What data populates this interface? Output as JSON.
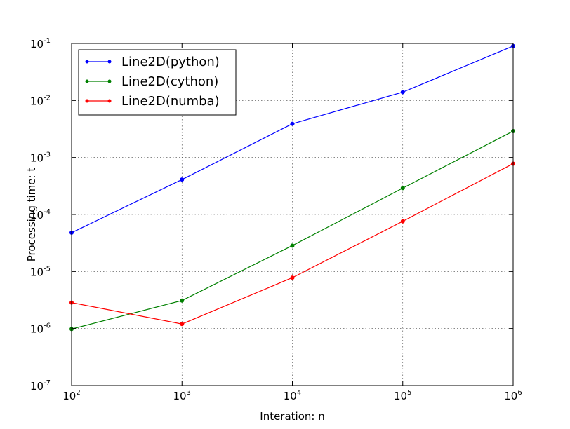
{
  "chart_data": {
    "type": "line",
    "title": "",
    "xlabel": "Interation: n",
    "ylabel": "Processing time: t",
    "xscale": "log",
    "yscale": "log",
    "xlim": [
      100,
      1000000
    ],
    "ylim": [
      1e-07,
      0.1
    ],
    "grid": true,
    "legend_position": "top-left",
    "x": [
      100,
      1000,
      10000,
      100000,
      1000000
    ],
    "xticks": [
      {
        "value": 100,
        "base": "10",
        "exp": "2"
      },
      {
        "value": 1000,
        "base": "10",
        "exp": "3"
      },
      {
        "value": 10000,
        "base": "10",
        "exp": "4"
      },
      {
        "value": 100000,
        "base": "10",
        "exp": "5"
      },
      {
        "value": 1000000,
        "base": "10",
        "exp": "6"
      }
    ],
    "yticks": [
      {
        "value": 1e-07,
        "base": "10",
        "exp": "-7"
      },
      {
        "value": 1e-06,
        "base": "10",
        "exp": "-6"
      },
      {
        "value": 1e-05,
        "base": "10",
        "exp": "-5"
      },
      {
        "value": 0.0001,
        "base": "10",
        "exp": "-4"
      },
      {
        "value": 0.001,
        "base": "10",
        "exp": "-3"
      },
      {
        "value": 0.01,
        "base": "10",
        "exp": "-2"
      },
      {
        "value": 0.1,
        "base": "10",
        "exp": "-1"
      }
    ],
    "series": [
      {
        "name": "Line2D(python)",
        "color": "#0000ff",
        "values": [
          4.8e-05,
          0.00041,
          0.0039,
          0.014,
          0.09
        ]
      },
      {
        "name": "Line2D(cython)",
        "color": "#008000",
        "values": [
          9.8e-07,
          3.1e-06,
          2.85e-05,
          0.00029,
          0.0029
        ]
      },
      {
        "name": "Line2D(numba)",
        "color": "#ff0000",
        "values": [
          2.85e-06,
          1.2e-06,
          7.8e-06,
          7.6e-05,
          0.00078
        ]
      }
    ]
  }
}
